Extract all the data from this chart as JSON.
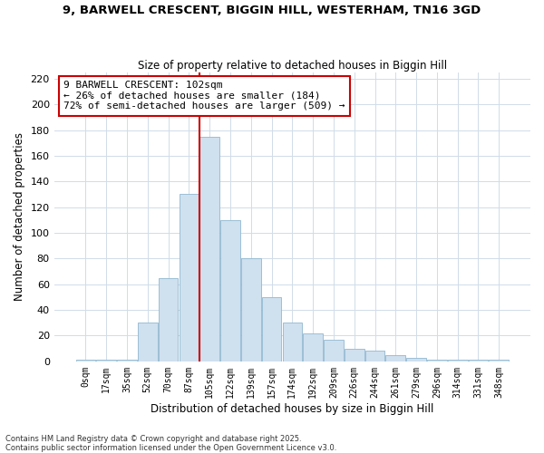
{
  "title": "9, BARWELL CRESCENT, BIGGIN HILL, WESTERHAM, TN16 3GD",
  "subtitle": "Size of property relative to detached houses in Biggin Hill",
  "xlabel": "Distribution of detached houses by size in Biggin Hill",
  "ylabel": "Number of detached properties",
  "bar_color": "#cfe0ef",
  "bar_edge_color": "#90b8d0",
  "vline_color": "#cc0000",
  "vline_bin": 6,
  "annotation_text": "9 BARWELL CRESCENT: 102sqm\n← 26% of detached houses are smaller (184)\n72% of semi-detached houses are larger (509) →",
  "annotation_box_color": "#ffffff",
  "annotation_box_edge": "#cc0000",
  "bin_labels": [
    "0sqm",
    "17sqm",
    "35sqm",
    "52sqm",
    "70sqm",
    "87sqm",
    "105sqm",
    "122sqm",
    "139sqm",
    "157sqm",
    "174sqm",
    "192sqm",
    "209sqm",
    "226sqm",
    "244sqm",
    "261sqm",
    "279sqm",
    "296sqm",
    "314sqm",
    "331sqm",
    "348sqm"
  ],
  "bar_heights": [
    1,
    1,
    1,
    30,
    65,
    130,
    175,
    110,
    80,
    50,
    30,
    22,
    17,
    10,
    8,
    5,
    3,
    1,
    1,
    1,
    1
  ],
  "ylim": [
    0,
    225
  ],
  "yticks": [
    0,
    20,
    40,
    60,
    80,
    100,
    120,
    140,
    160,
    180,
    200,
    220
  ],
  "footnote": "Contains HM Land Registry data © Crown copyright and database right 2025.\nContains public sector information licensed under the Open Government Licence v3.0.",
  "background_color": "#ffffff",
  "grid_color": "#d0dce8"
}
